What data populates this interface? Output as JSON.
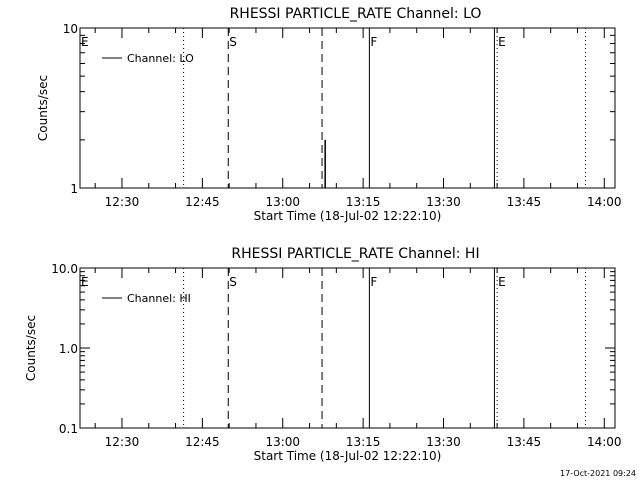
{
  "colors": {
    "background": "#ffffff",
    "foreground": "#000000"
  },
  "footer": {
    "timestamp": "17-Oct-2021 09:24"
  },
  "chart_data": [
    {
      "type": "line",
      "title": "RHESSI PARTICLE_RATE Channel: LO",
      "xlabel": "Start Time (18-Jul-02 12:22:10)",
      "ylabel": "Counts/sec",
      "yscale": "log",
      "ylim": [
        1,
        10
      ],
      "y_ticks": [
        {
          "value": 1,
          "label": "1"
        },
        {
          "value": 10,
          "label": "10"
        }
      ],
      "xlim": [
        "12:22:10",
        "14:02:00"
      ],
      "x_ticks": [
        "12:30",
        "12:45",
        "13:00",
        "13:15",
        "13:30",
        "13:45",
        "14:00"
      ],
      "legend": {
        "position": "top-left",
        "entries": [
          "Channel: LO"
        ]
      },
      "series": [
        {
          "name": "Channel: LO",
          "x": [
            "13:07:55",
            "13:07:55"
          ],
          "y": [
            1,
            2
          ]
        }
      ],
      "markers": [
        {
          "time": "12:22:10",
          "style": "none",
          "label": "E"
        },
        {
          "time": "12:41:30",
          "style": "dotted",
          "label": ""
        },
        {
          "time": "12:49:50",
          "style": "dashed",
          "label": "S"
        },
        {
          "time": "13:07:20",
          "style": "dashed",
          "label": ""
        },
        {
          "time": "13:16:10",
          "style": "solid",
          "label": "F"
        },
        {
          "time": "13:39:30",
          "style": "solid",
          "label": ""
        },
        {
          "time": "13:40:00",
          "style": "dotted",
          "label": "E"
        },
        {
          "time": "13:56:30",
          "style": "dotted",
          "label": ""
        }
      ]
    },
    {
      "type": "line",
      "title": "RHESSI PARTICLE_RATE Channel: HI",
      "xlabel": "Start Time (18-Jul-02 12:22:10)",
      "ylabel": "Counts/sec",
      "yscale": "log",
      "ylim": [
        0.1,
        10
      ],
      "y_ticks": [
        {
          "value": 0.1,
          "label": "0.1"
        },
        {
          "value": 1,
          "label": "1.0"
        },
        {
          "value": 10,
          "label": "10.0"
        }
      ],
      "xlim": [
        "12:22:10",
        "14:02:00"
      ],
      "x_ticks": [
        "12:30",
        "12:45",
        "13:00",
        "13:15",
        "13:30",
        "13:45",
        "14:00"
      ],
      "legend": {
        "position": "top-left",
        "entries": [
          "Channel: HI"
        ]
      },
      "series": [
        {
          "name": "Channel: HI",
          "x": [],
          "y": []
        }
      ],
      "markers": [
        {
          "time": "12:22:10",
          "style": "none",
          "label": "E"
        },
        {
          "time": "12:41:30",
          "style": "dotted",
          "label": ""
        },
        {
          "time": "12:49:50",
          "style": "dashed",
          "label": "S"
        },
        {
          "time": "13:07:20",
          "style": "dashed",
          "label": ""
        },
        {
          "time": "13:16:10",
          "style": "solid",
          "label": "F"
        },
        {
          "time": "13:39:30",
          "style": "solid",
          "label": ""
        },
        {
          "time": "13:40:00",
          "style": "dotted",
          "label": "E"
        },
        {
          "time": "13:56:30",
          "style": "dotted",
          "label": ""
        }
      ]
    }
  ]
}
